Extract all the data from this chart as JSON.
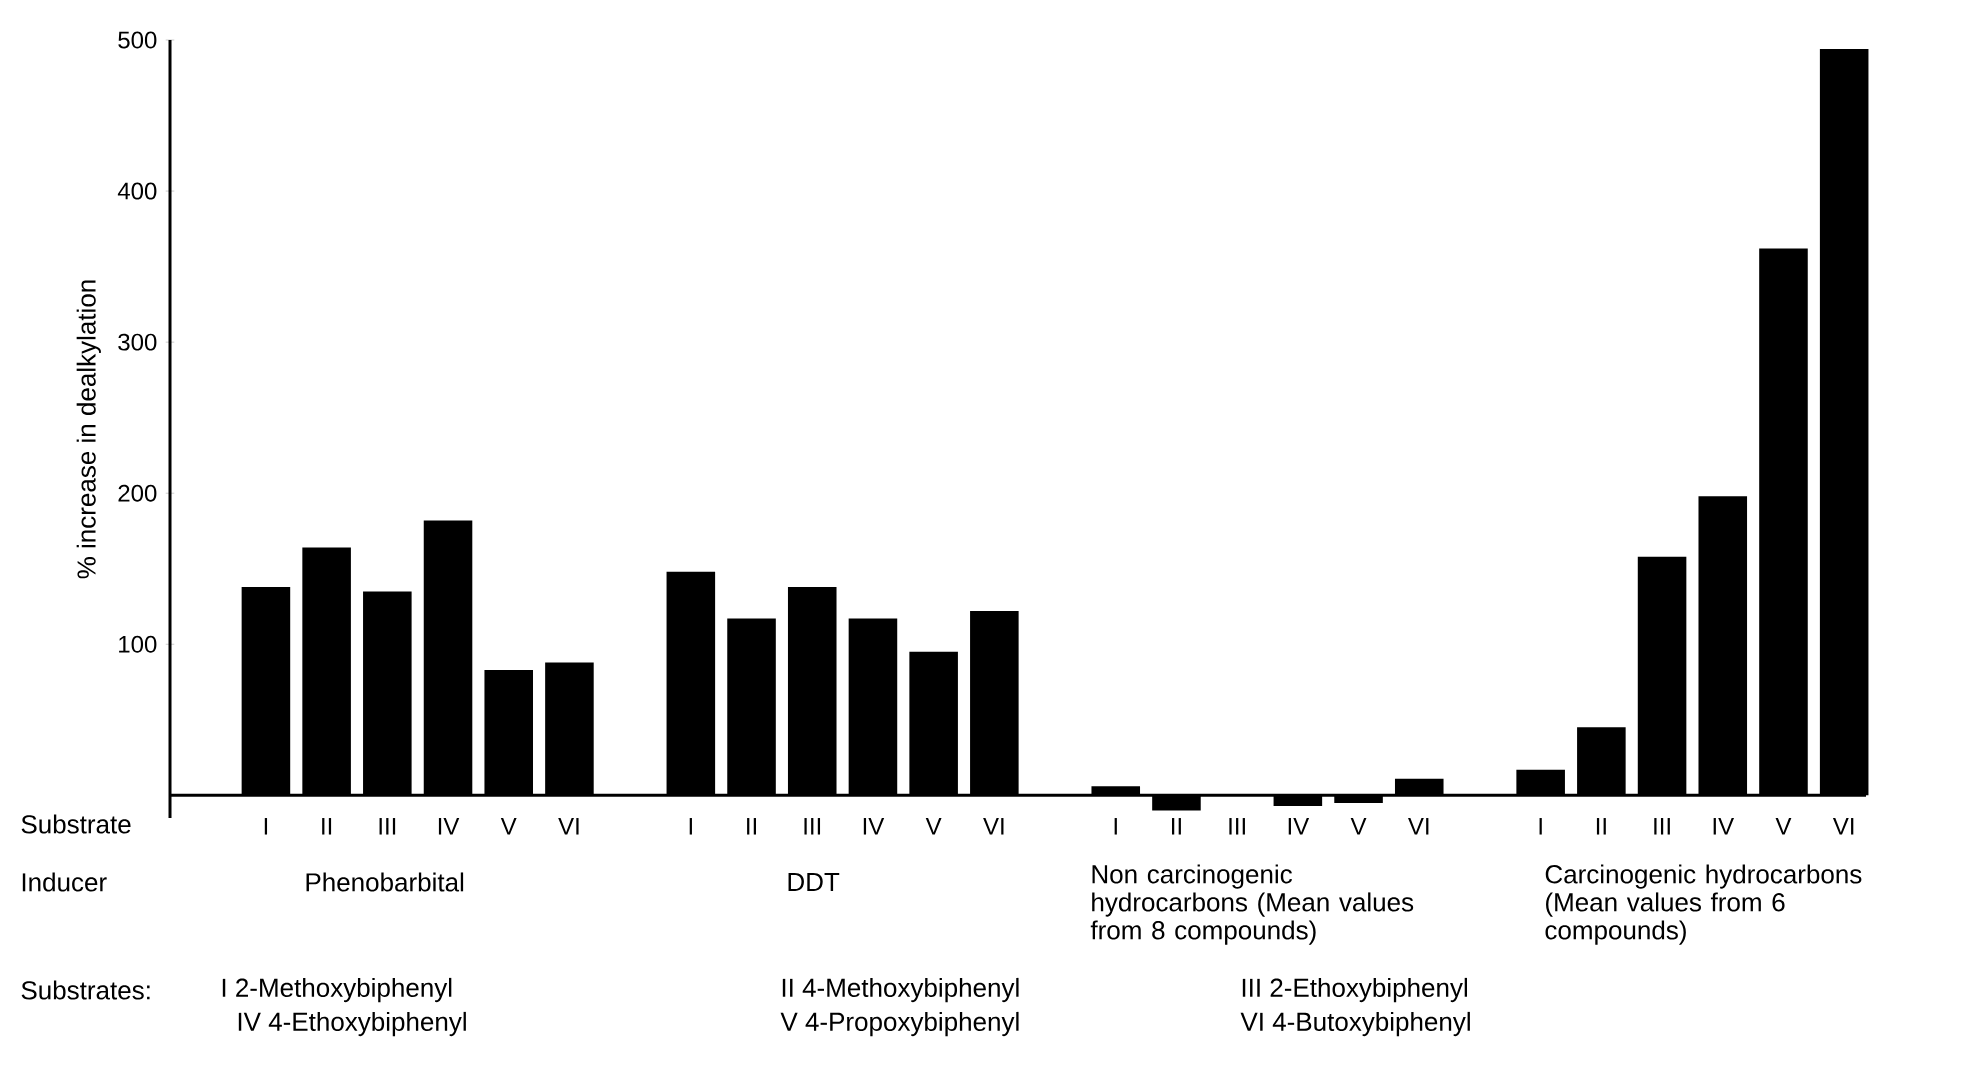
{
  "chart_data": {
    "type": "bar",
    "ylabel": "% increase in dealkylation",
    "categories": [
      "I",
      "II",
      "III",
      "IV",
      "V",
      "VI",
      null,
      "I",
      "II",
      "III",
      "IV",
      "V",
      "VI",
      null,
      "I",
      "II",
      "III",
      "IV",
      "V",
      "VI",
      null,
      "I",
      "II",
      "III",
      "IV",
      "V",
      "VI"
    ],
    "values": [
      138,
      164,
      135,
      182,
      83,
      88,
      null,
      148,
      117,
      138,
      117,
      95,
      122,
      null,
      6,
      -10,
      null,
      -7,
      -5,
      11,
      null,
      17,
      45,
      158,
      198,
      362,
      494
    ],
    "color": "#000000",
    "ylim": [
      -15,
      500
    ],
    "yticks": [
      100,
      200,
      300,
      400,
      500
    ],
    "annotations": [
      "Substrate",
      "Inducer",
      "Phenobarbital",
      "DDT",
      "Non carcinogenic hydrocarbons (Mean values from 8 compounds)",
      "Carcinogenic hydrocarbons (Mean values from 6 compounds)",
      "Substrates:",
      "I 2-Methoxybiphenyl",
      "II 4-Methoxybiphenyl",
      "III 2-Ethoxybiphenyl",
      "IV 4-Ethoxybiphenyl",
      "V 4-Propoxybiphenyl",
      "VI 4-Butoxybiphenyl"
    ]
  }
}
